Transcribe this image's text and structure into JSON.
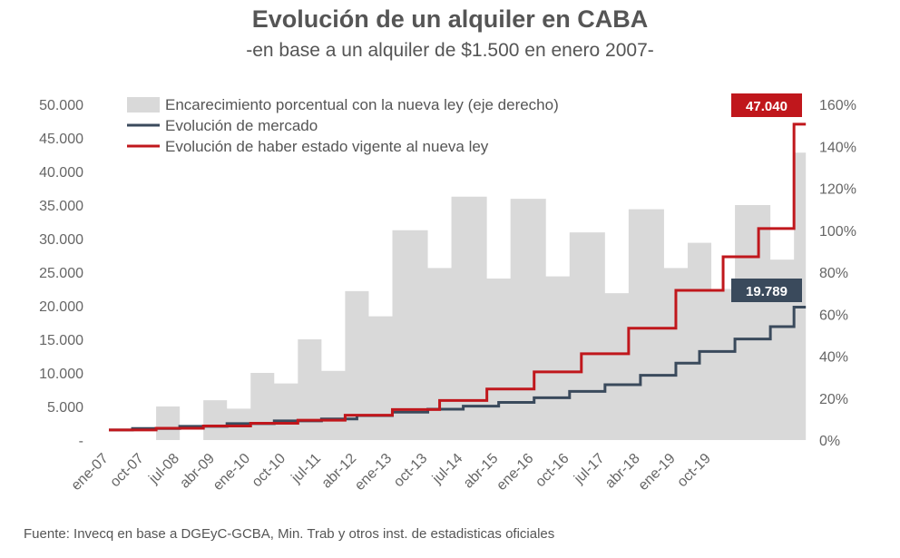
{
  "title": "Evolución de un alquiler en CABA",
  "subtitle": "-en base a un alquiler de $1.500 en enero 2007-",
  "source": "Fuente: Invecq en base a DGEyC-GCBA, Min. Trab y otros inst. de estadisticas oficiales",
  "colors": {
    "area": "#d9d9d9",
    "market": "#3a4a5c",
    "law": "#c0171c",
    "text": "#555555"
  },
  "chart_data": {
    "type": "line",
    "title": "Evolución de un alquiler en CABA",
    "subtitle": "-en base a un alquiler de $1.500 en enero 2007-",
    "x_labels": [
      "ene-07",
      "oct-07",
      "jul-08",
      "abr-09",
      "ene-10",
      "oct-10",
      "jul-11",
      "abr-12",
      "ene-13",
      "oct-13",
      "jul-14",
      "abr-15",
      "ene-16",
      "oct-16",
      "jul-17",
      "abr-18",
      "ene-19",
      "oct-19"
    ],
    "x_label_months": [
      0,
      9,
      18,
      27,
      36,
      45,
      54,
      63,
      72,
      81,
      90,
      99,
      108,
      117,
      126,
      135,
      144,
      153
    ],
    "x_range_months": [
      0,
      156
    ],
    "y_left": {
      "min": 0,
      "max": 50000,
      "ticks": [
        "-",
        "5.000",
        "10.000",
        "15.000",
        "20.000",
        "25.000",
        "30.000",
        "35.000",
        "40.000",
        "45.000",
        "50.000"
      ]
    },
    "y_right": {
      "min": 0,
      "max": 160,
      "ticks": [
        "0%",
        "20%",
        "40%",
        "60%",
        "80%",
        "100%",
        "120%",
        "140%",
        "160%"
      ]
    },
    "legend": [
      "Encarecimiento porcentual con la nueva ley (eje derecho)",
      "Evolución de mercado",
      "Evolución de haber estado vigente al nueva ley"
    ],
    "series": [
      {
        "name": "Encarecimiento porcentual con la nueva ley (eje derecho)",
        "type": "area",
        "axis": "right",
        "steps": [
          [
            0,
            0
          ],
          [
            12,
            16
          ],
          [
            18,
            0
          ],
          [
            24,
            19
          ],
          [
            30,
            15
          ],
          [
            36,
            32
          ],
          [
            42,
            27
          ],
          [
            48,
            48
          ],
          [
            54,
            33
          ],
          [
            60,
            71
          ],
          [
            66,
            59
          ],
          [
            72,
            100
          ],
          [
            81,
            82
          ],
          [
            87,
            116
          ],
          [
            96,
            77
          ],
          [
            102,
            115
          ],
          [
            111,
            78
          ],
          [
            117,
            99
          ],
          [
            126,
            70
          ],
          [
            132,
            110
          ],
          [
            141,
            82
          ],
          [
            147,
            94
          ],
          [
            153,
            72
          ],
          [
            159,
            112
          ],
          [
            168,
            86
          ],
          [
            174,
            137
          ],
          [
            177,
            137
          ]
        ]
      },
      {
        "name": "Evolución de mercado",
        "type": "step-line",
        "axis": "left",
        "steps": [
          [
            0,
            1500
          ],
          [
            6,
            1720
          ],
          [
            18,
            2050
          ],
          [
            30,
            2450
          ],
          [
            42,
            2850
          ],
          [
            54,
            3150
          ],
          [
            63,
            3650
          ],
          [
            72,
            4150
          ],
          [
            81,
            4600
          ],
          [
            90,
            5050
          ],
          [
            99,
            5600
          ],
          [
            108,
            6300
          ],
          [
            117,
            7250
          ],
          [
            126,
            8250
          ],
          [
            135,
            9650
          ],
          [
            144,
            11450
          ],
          [
            150,
            13200
          ],
          [
            159,
            15050
          ],
          [
            168,
            16900
          ],
          [
            174,
            19789
          ],
          [
            177,
            19789
          ]
        ]
      },
      {
        "name": "Evolución de haber estado vigente al nueva ley",
        "type": "step-line",
        "axis": "left",
        "steps": [
          [
            0,
            1500
          ],
          [
            12,
            1750
          ],
          [
            24,
            2100
          ],
          [
            36,
            2500
          ],
          [
            48,
            2950
          ],
          [
            60,
            3700
          ],
          [
            72,
            4550
          ],
          [
            84,
            5900
          ],
          [
            96,
            7600
          ],
          [
            108,
            10150
          ],
          [
            120,
            12850
          ],
          [
            132,
            16650
          ],
          [
            144,
            22300
          ],
          [
            156,
            27300
          ],
          [
            165,
            31500
          ],
          [
            174,
            47040
          ],
          [
            177,
            47040
          ]
        ]
      }
    ],
    "callouts": [
      {
        "label": "47.040",
        "series": "Evolución de haber estado vigente al nueva ley"
      },
      {
        "label": "19.789",
        "series": "Evolución de mercado"
      }
    ]
  }
}
